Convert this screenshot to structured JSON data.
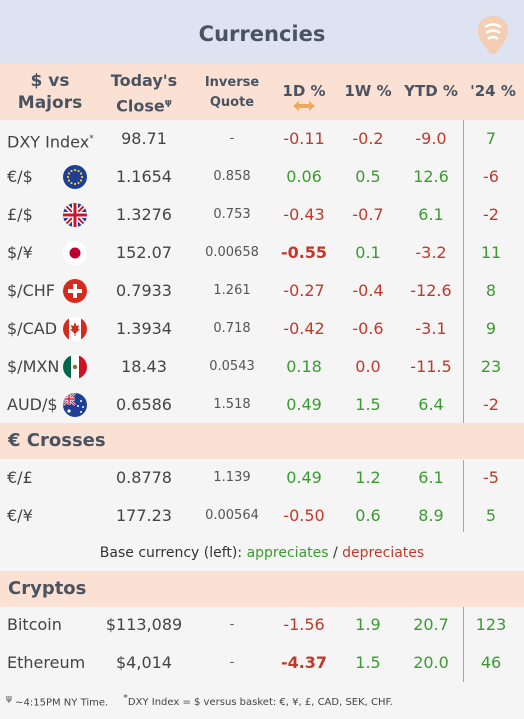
{
  "title": "Currencies",
  "headers": {
    "pair_line1": "$ vs",
    "pair_line2": "Majors",
    "close_line1": "Today's",
    "close_line2": "Close",
    "close_sup": "ψ",
    "inverse_line1": "Inverse",
    "inverse_line2": "Quote",
    "d1": "1D %",
    "w1": "1W %",
    "ytd": "YTD %",
    "y24": "'24 %"
  },
  "majors": [
    {
      "name": "DXY Index",
      "sup": "*",
      "flag": "",
      "close": "98.71",
      "inverse": "-",
      "d1": "-0.11",
      "w1": "-0.2",
      "ytd": "-9.0",
      "y24": "7",
      "d1_dir": "neg",
      "w1_dir": "neg",
      "ytd_dir": "neg",
      "y24_dir": "pos",
      "d1_bold": false
    },
    {
      "name": "€/$",
      "sup": "",
      "flag": "eu-flag-icon",
      "close": "1.1654",
      "inverse": "0.858",
      "d1": "0.06",
      "w1": "0.5",
      "ytd": "12.6",
      "y24": "-6",
      "d1_dir": "pos",
      "w1_dir": "pos",
      "ytd_dir": "pos",
      "y24_dir": "neg",
      "d1_bold": false
    },
    {
      "name": "£/$",
      "sup": "",
      "flag": "uk-flag-icon",
      "close": "1.3276",
      "inverse": "0.753",
      "d1": "-0.43",
      "w1": "-0.7",
      "ytd": "6.1",
      "y24": "-2",
      "d1_dir": "neg",
      "w1_dir": "neg",
      "ytd_dir": "pos",
      "y24_dir": "neg",
      "d1_bold": false
    },
    {
      "name": "$/¥",
      "sup": "",
      "flag": "japan-flag-icon",
      "close": "152.07",
      "inverse": "0.00658",
      "d1": "-0.55",
      "w1": "0.1",
      "ytd": "-3.2",
      "y24": "11",
      "d1_dir": "neg",
      "w1_dir": "pos",
      "ytd_dir": "neg",
      "y24_dir": "pos",
      "d1_bold": true
    },
    {
      "name": "$/CHF",
      "sup": "",
      "flag": "swiss-flag-icon",
      "close": "0.7933",
      "inverse": "1.261",
      "d1": "-0.27",
      "w1": "-0.4",
      "ytd": "-12.6",
      "y24": "8",
      "d1_dir": "neg",
      "w1_dir": "neg",
      "ytd_dir": "neg",
      "y24_dir": "pos",
      "d1_bold": false
    },
    {
      "name": "$/CAD",
      "sup": "",
      "flag": "canada-flag-icon",
      "close": "1.3934",
      "inverse": "0.718",
      "d1": "-0.42",
      "w1": "-0.6",
      "ytd": "-3.1",
      "y24": "9",
      "d1_dir": "neg",
      "w1_dir": "neg",
      "ytd_dir": "neg",
      "y24_dir": "pos",
      "d1_bold": false
    },
    {
      "name": "$/MXN",
      "sup": "",
      "flag": "mexico-flag-icon",
      "close": "18.43",
      "inverse": "0.0543",
      "d1": "0.18",
      "w1": "0.0",
      "ytd": "-11.5",
      "y24": "23",
      "d1_dir": "pos",
      "w1_dir": "neg",
      "ytd_dir": "neg",
      "y24_dir": "pos",
      "d1_bold": false
    },
    {
      "name": "AUD/$",
      "sup": "",
      "flag": "australia-flag-icon",
      "close": "0.6586",
      "inverse": "1.518",
      "d1": "0.49",
      "w1": "1.5",
      "ytd": "6.4",
      "y24": "-2",
      "d1_dir": "pos",
      "w1_dir": "pos",
      "ytd_dir": "pos",
      "y24_dir": "neg",
      "d1_bold": false
    }
  ],
  "crosses_title": "€ Crosses",
  "crosses": [
    {
      "name": "€/£",
      "close": "0.8778",
      "inverse": "1.139",
      "d1": "0.49",
      "w1": "1.2",
      "ytd": "6.1",
      "y24": "-5",
      "d1_dir": "pos",
      "w1_dir": "pos",
      "ytd_dir": "pos",
      "y24_dir": "neg",
      "d1_bold": false
    },
    {
      "name": "€/¥",
      "close": "177.23",
      "inverse": "0.00564",
      "d1": "-0.50",
      "w1": "0.6",
      "ytd": "8.9",
      "y24": "5",
      "d1_dir": "neg",
      "w1_dir": "pos",
      "ytd_dir": "pos",
      "y24_dir": "pos",
      "d1_bold": false
    }
  ],
  "legend": {
    "prefix": "Base currency (left):",
    "appreciates": "appreciates",
    "sep": "/",
    "depreciates": "depreciates"
  },
  "cryptos_title": "Cryptos",
  "cryptos": [
    {
      "name": "Bitcoin",
      "close": "$113,089",
      "inverse": "-",
      "d1": "-1.56",
      "w1": "1.9",
      "ytd": "20.7",
      "y24": "123",
      "d1_dir": "neg",
      "w1_dir": "pos",
      "ytd_dir": "pos",
      "y24_dir": "pos",
      "d1_bold": false
    },
    {
      "name": "Ethereum",
      "close": "$4,014",
      "inverse": "-",
      "d1": "-4.37",
      "w1": "1.5",
      "ytd": "20.0",
      "y24": "46",
      "d1_dir": "neg",
      "w1_dir": "pos",
      "ytd_dir": "pos",
      "y24_dir": "pos",
      "d1_bold": true
    }
  ],
  "footer": {
    "note1_sym": "ψ",
    "note1": "~4:15PM NY Time.",
    "note2_sym": "*",
    "note2": "DXY Index = $ versus basket: €, ¥, £, CAD, SEK, CHF."
  },
  "colors": {
    "positive": "#3a9b2f",
    "negative": "#c0392b",
    "header_bg": "#fbe1d3",
    "title_bg": "#dde3f0"
  }
}
